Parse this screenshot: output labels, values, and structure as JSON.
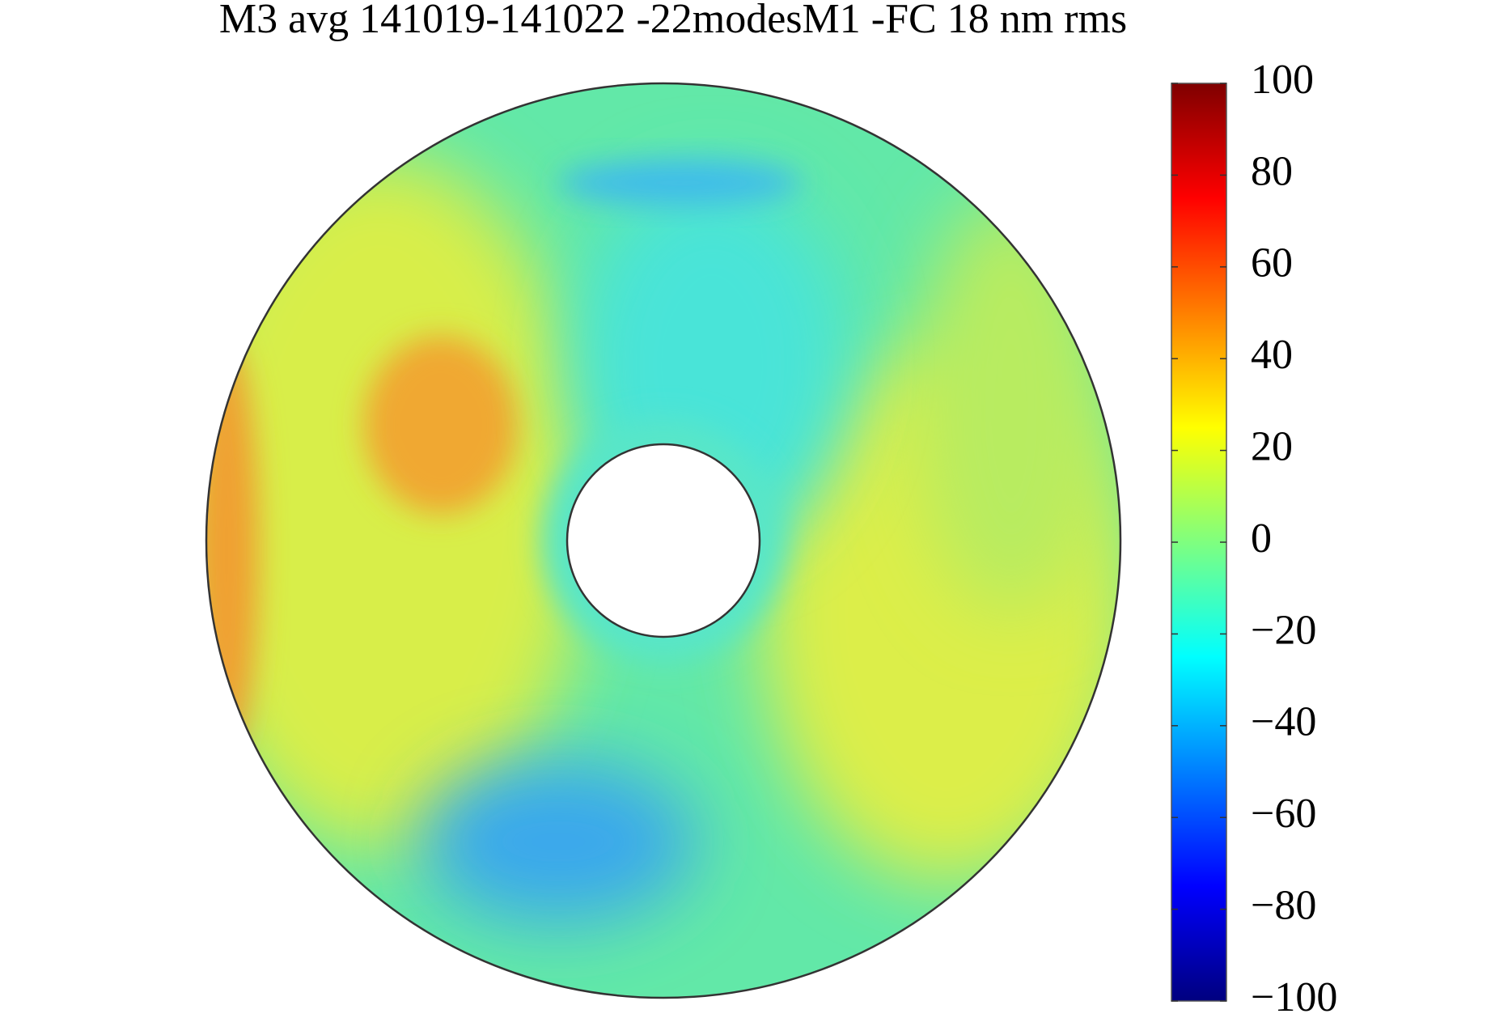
{
  "chart_data": {
    "type": "surface-map",
    "title": "M3 avg 141019-141022 -22modesM1 -FC 18 nm rms",
    "colormap": "jet",
    "clim": [
      -100,
      100
    ],
    "cticks": [
      {
        "value": -100,
        "label": "−100"
      },
      {
        "value": -80,
        "label": "−80"
      },
      {
        "value": -60,
        "label": "−60"
      },
      {
        "value": -40,
        "label": "−40"
      },
      {
        "value": -20,
        "label": "−20"
      },
      0,
      20,
      40,
      60,
      80,
      100
    ]
  }
}
